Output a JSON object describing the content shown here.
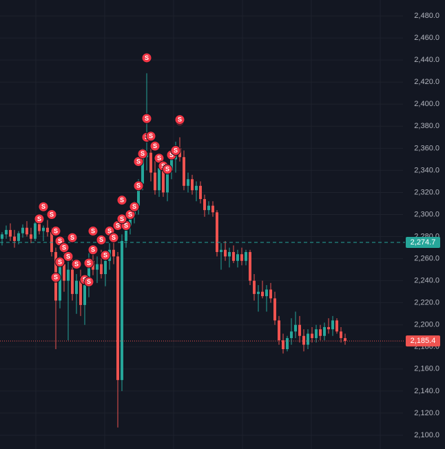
{
  "chart_data": {
    "type": "candlestick",
    "ylim": [
      2087.5,
      2494.4
    ],
    "yticks": [
      {
        "value": 2100,
        "label": "2,100.0"
      },
      {
        "value": 2120,
        "label": "2,120.0"
      },
      {
        "value": 2140,
        "label": "2,140.0"
      },
      {
        "value": 2160,
        "label": "2,160.0"
      },
      {
        "value": 2180,
        "label": "2,180.0"
      },
      {
        "value": 2200,
        "label": "2,200.0"
      },
      {
        "value": 2220,
        "label": "2,220.0"
      },
      {
        "value": 2240,
        "label": "2,240.0"
      },
      {
        "value": 2260,
        "label": "2,260.0"
      },
      {
        "value": 2280,
        "label": "2,280.0"
      },
      {
        "value": 2300,
        "label": "2,300.0"
      },
      {
        "value": 2320,
        "label": "2,320.0"
      },
      {
        "value": 2340,
        "label": "2,340.0"
      },
      {
        "value": 2360,
        "label": "2,360.0"
      },
      {
        "value": 2380,
        "label": "2,380.0"
      },
      {
        "value": 2400,
        "label": "2,400.0"
      },
      {
        "value": 2420,
        "label": "2,420.0"
      },
      {
        "value": 2440,
        "label": "2,440.0"
      },
      {
        "value": 2460,
        "label": "2,460.0"
      },
      {
        "value": 2480,
        "label": "2,480.0"
      }
    ],
    "grid": true,
    "up_color": "#26a69a",
    "down_color": "#ef5350",
    "ohlc": [
      [
        2278,
        2284,
        2272,
        2282
      ],
      [
        2282,
        2290,
        2278,
        2286
      ],
      [
        2286,
        2292,
        2276,
        2280
      ],
      [
        2280,
        2286,
        2270,
        2276
      ],
      [
        2276,
        2285,
        2273,
        2283
      ],
      [
        2283,
        2291,
        2279,
        2288
      ],
      [
        2288,
        2294,
        2280,
        2282
      ],
      [
        2282,
        2288,
        2274,
        2278
      ],
      [
        2278,
        2296,
        2276,
        2292
      ],
      [
        2292,
        2298,
        2282,
        2285
      ],
      [
        2285,
        2290,
        2276,
        2288
      ],
      [
        2288,
        2295,
        2280,
        2284
      ],
      [
        2284,
        2288,
        2262,
        2266
      ],
      [
        2266,
        2270,
        2178,
        2222
      ],
      [
        2222,
        2262,
        2215,
        2255
      ],
      [
        2255,
        2268,
        2230,
        2240
      ],
      [
        2240,
        2258,
        2186,
        2250
      ],
      [
        2250,
        2262,
        2222,
        2228
      ],
      [
        2228,
        2246,
        2210,
        2240
      ],
      [
        2240,
        2250,
        2208,
        2218
      ],
      [
        2218,
        2242,
        2200,
        2236
      ],
      [
        2236,
        2265,
        2225,
        2258
      ],
      [
        2258,
        2270,
        2245,
        2250
      ],
      [
        2250,
        2262,
        2238,
        2255
      ],
      [
        2255,
        2268,
        2242,
        2246
      ],
      [
        2246,
        2262,
        2235,
        2258
      ],
      [
        2258,
        2274,
        2250,
        2268
      ],
      [
        2268,
        2280,
        2255,
        2262
      ],
      [
        2262,
        2266,
        2107,
        2150
      ],
      [
        2150,
        2282,
        2140,
        2276
      ],
      [
        2276,
        2295,
        2270,
        2290
      ],
      [
        2290,
        2305,
        2282,
        2300
      ],
      [
        2300,
        2312,
        2292,
        2308
      ],
      [
        2308,
        2332,
        2300,
        2328
      ],
      [
        2328,
        2360,
        2322,
        2352
      ],
      [
        2352,
        2428,
        2340,
        2356
      ],
      [
        2356,
        2364,
        2330,
        2338
      ],
      [
        2338,
        2350,
        2318,
        2322
      ],
      [
        2322,
        2348,
        2316,
        2342
      ],
      [
        2342,
        2352,
        2316,
        2320
      ],
      [
        2320,
        2345,
        2312,
        2340
      ],
      [
        2340,
        2356,
        2332,
        2350
      ],
      [
        2350,
        2366,
        2338,
        2360
      ],
      [
        2360,
        2370,
        2348,
        2352
      ],
      [
        2352,
        2358,
        2322,
        2326
      ],
      [
        2326,
        2338,
        2320,
        2332
      ],
      [
        2332,
        2336,
        2318,
        2322
      ],
      [
        2322,
        2330,
        2312,
        2326
      ],
      [
        2326,
        2330,
        2310,
        2314
      ],
      [
        2314,
        2318,
        2298,
        2304
      ],
      [
        2304,
        2312,
        2300,
        2308
      ],
      [
        2308,
        2312,
        2298,
        2302
      ],
      [
        2302,
        2304,
        2262,
        2266
      ],
      [
        2266,
        2274,
        2250,
        2268
      ],
      [
        2268,
        2276,
        2258,
        2262
      ],
      [
        2262,
        2270,
        2252,
        2266
      ],
      [
        2266,
        2272,
        2256,
        2258
      ],
      [
        2258,
        2268,
        2252,
        2264
      ],
      [
        2264,
        2270,
        2254,
        2258
      ],
      [
        2258,
        2268,
        2254,
        2266
      ],
      [
        2266,
        2268,
        2236,
        2240
      ],
      [
        2240,
        2246,
        2222,
        2228
      ],
      [
        2228,
        2236,
        2212,
        2230
      ],
      [
        2230,
        2240,
        2224,
        2226
      ],
      [
        2226,
        2236,
        2212,
        2232
      ],
      [
        2232,
        2238,
        2220,
        2224
      ],
      [
        2224,
        2230,
        2200,
        2204
      ],
      [
        2204,
        2208,
        2182,
        2186
      ],
      [
        2186,
        2192,
        2174,
        2178
      ],
      [
        2178,
        2190,
        2176,
        2188
      ],
      [
        2188,
        2206,
        2182,
        2194
      ],
      [
        2194,
        2212,
        2188,
        2200
      ],
      [
        2200,
        2208,
        2184,
        2190
      ],
      [
        2190,
        2196,
        2176,
        2182
      ],
      [
        2182,
        2196,
        2178,
        2192
      ],
      [
        2192,
        2198,
        2184,
        2188
      ],
      [
        2188,
        2200,
        2184,
        2196
      ],
      [
        2196,
        2200,
        2186,
        2190
      ],
      [
        2190,
        2202,
        2186,
        2198
      ],
      [
        2198,
        2206,
        2192,
        2196
      ],
      [
        2196,
        2208,
        2190,
        2204
      ],
      [
        2204,
        2206,
        2192,
        2194
      ],
      [
        2194,
        2198,
        2184,
        2188
      ],
      [
        2188,
        2192,
        2182,
        2185.4
      ]
    ],
    "markers": {
      "label": "S",
      "color": "#f23645",
      "points": [
        {
          "at": 9,
          "value": 2296
        },
        {
          "at": 10,
          "value": 2307
        },
        {
          "at": 12,
          "value": 2300
        },
        {
          "at": 13,
          "value": 2285
        },
        {
          "at": 14,
          "value": 2276
        },
        {
          "at": 15,
          "value": 2270
        },
        {
          "at": 17,
          "value": 2279
        },
        {
          "at": 14,
          "value": 2257
        },
        {
          "at": 16,
          "value": 2262
        },
        {
          "at": 18,
          "value": 2255
        },
        {
          "at": 13,
          "value": 2243
        },
        {
          "at": 20,
          "value": 2241
        },
        {
          "at": 21,
          "value": 2239
        },
        {
          "at": 21,
          "value": 2256
        },
        {
          "at": 22,
          "value": 2285
        },
        {
          "at": 24,
          "value": 2277
        },
        {
          "at": 22,
          "value": 2268
        },
        {
          "at": 25,
          "value": 2263
        },
        {
          "at": 26,
          "value": 2285
        },
        {
          "at": 27,
          "value": 2279
        },
        {
          "at": 28,
          "value": 2290
        },
        {
          "at": 30,
          "value": 2290
        },
        {
          "at": 29,
          "value": 2296
        },
        {
          "at": 31,
          "value": 2300
        },
        {
          "at": 32,
          "value": 2307
        },
        {
          "at": 29,
          "value": 2313
        },
        {
          "at": 33,
          "value": 2326
        },
        {
          "at": 33,
          "value": 2348
        },
        {
          "at": 34,
          "value": 2355
        },
        {
          "at": 35,
          "value": 2370
        },
        {
          "at": 36,
          "value": 2371
        },
        {
          "at": 35,
          "value": 2387
        },
        {
          "at": 35,
          "value": 2442
        },
        {
          "at": 37,
          "value": 2362
        },
        {
          "at": 38,
          "value": 2351
        },
        {
          "at": 39,
          "value": 2344
        },
        {
          "at": 40,
          "value": 2341
        },
        {
          "at": 41,
          "value": 2354
        },
        {
          "at": 42,
          "value": 2358
        },
        {
          "at": 43,
          "value": 2385
        },
        {
          "at": 43,
          "value": 2386
        }
      ]
    },
    "price_lines": [
      {
        "value": 2274.7,
        "label": "2,274.7",
        "color": "#26a69a",
        "style": "dashed"
      },
      {
        "value": 2185.4,
        "label": "2,185.4",
        "color": "#ef5350",
        "style": "dotted"
      }
    ]
  }
}
